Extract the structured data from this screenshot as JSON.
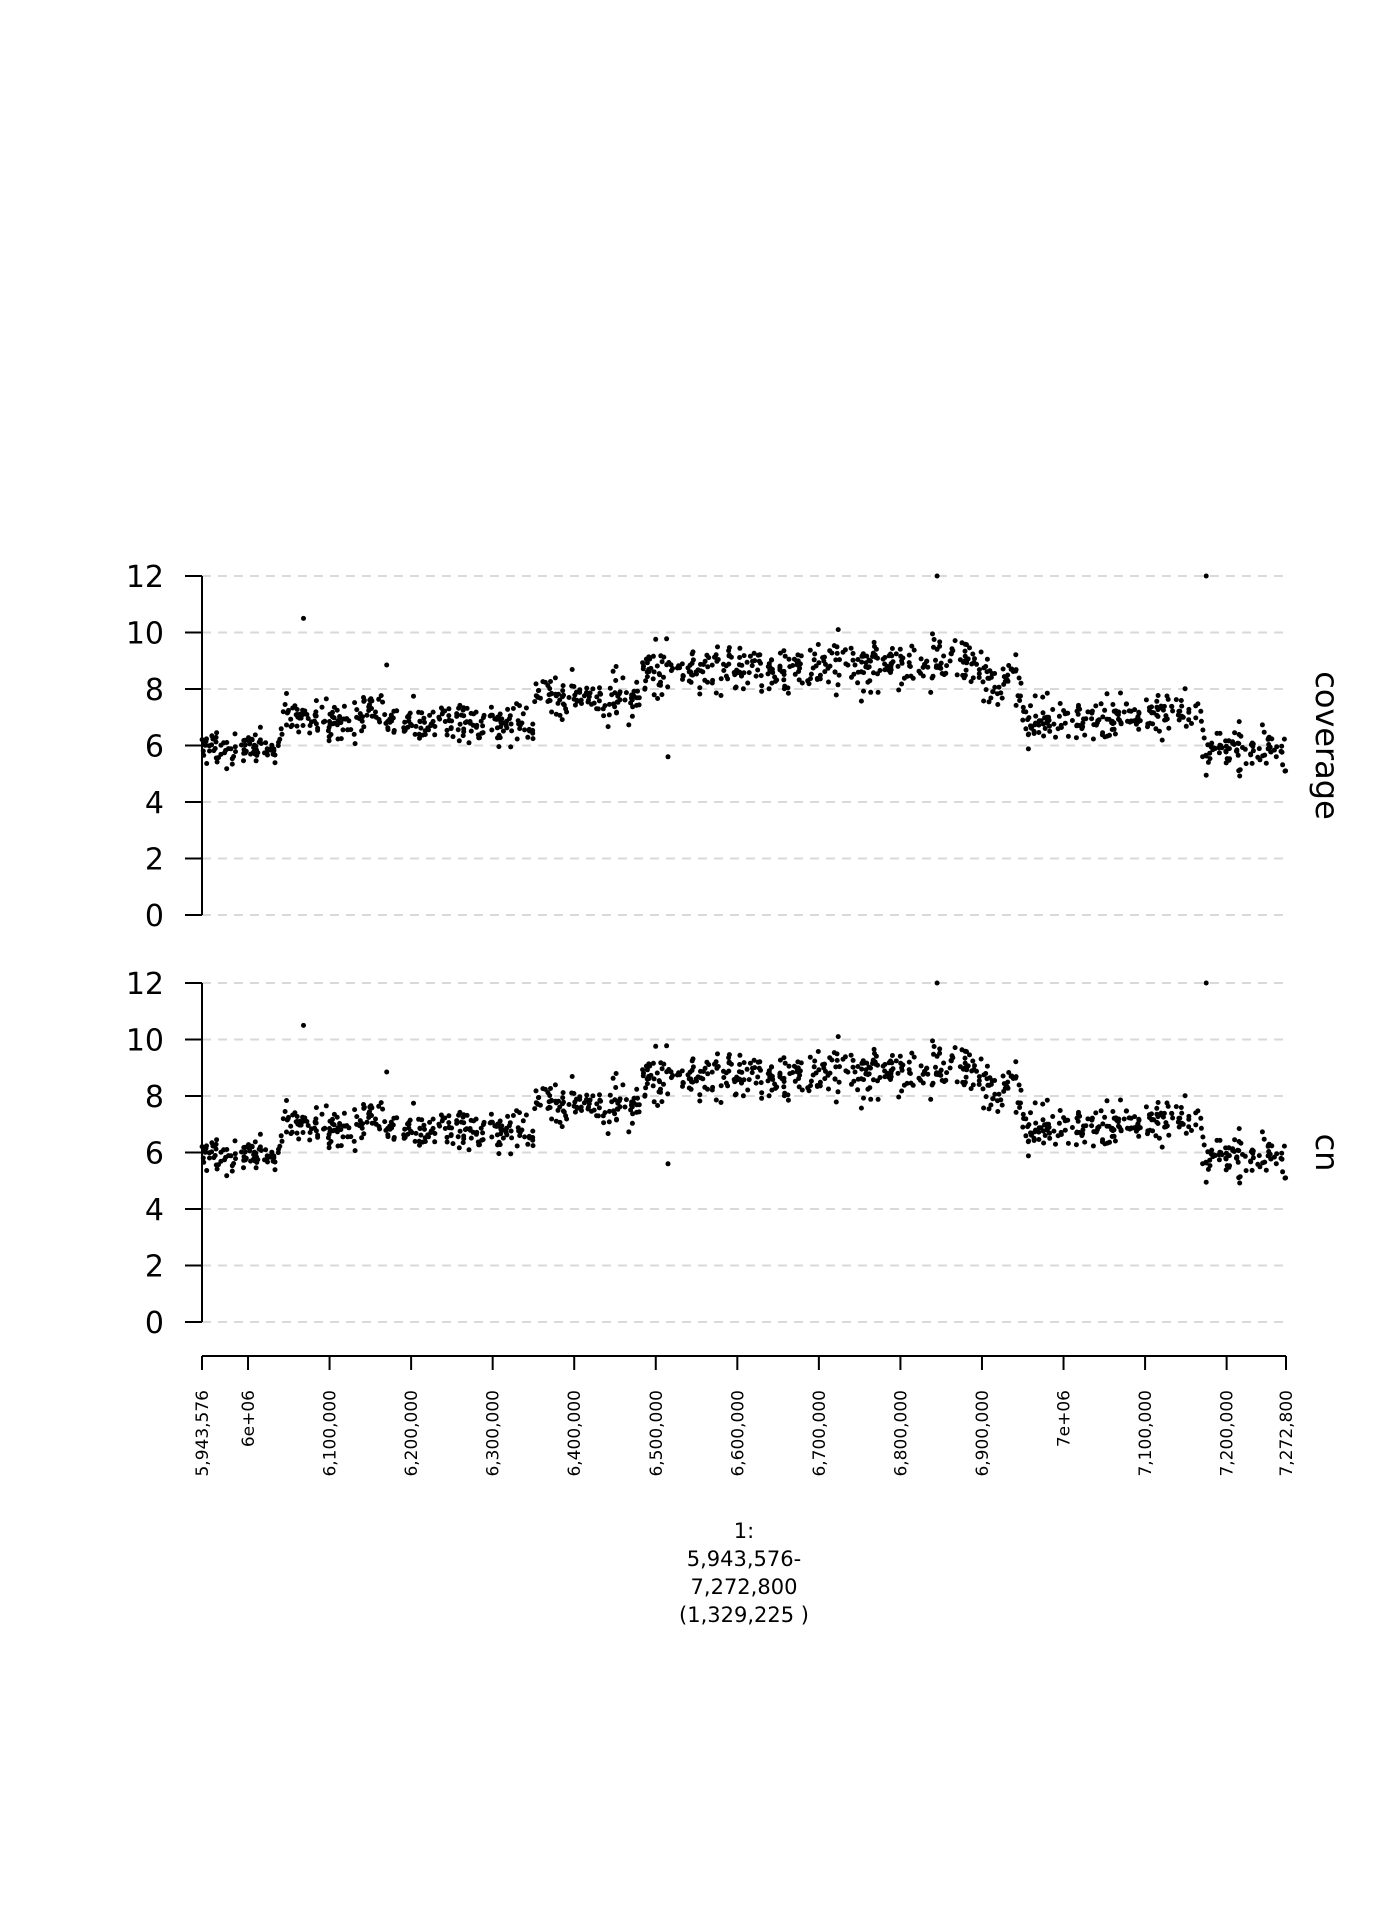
{
  "chart_data": {
    "type": "scatter",
    "xlim": [
      5943576,
      7272800
    ],
    "x_ticks": [
      {
        "value": 5943576,
        "label": "5,943,576"
      },
      {
        "value": 6000000,
        "label": "6e+06"
      },
      {
        "value": 6100000,
        "label": "6,100,000"
      },
      {
        "value": 6200000,
        "label": "6,200,000"
      },
      {
        "value": 6300000,
        "label": "6,300,000"
      },
      {
        "value": 6400000,
        "label": "6,400,000"
      },
      {
        "value": 6500000,
        "label": "6,500,000"
      },
      {
        "value": 6600000,
        "label": "6,600,000"
      },
      {
        "value": 6700000,
        "label": "6,700,000"
      },
      {
        "value": 6800000,
        "label": "6,800,000"
      },
      {
        "value": 6900000,
        "label": "6,900,000"
      },
      {
        "value": 7000000,
        "label": "7e+06"
      },
      {
        "value": 7100000,
        "label": "7,100,000"
      },
      {
        "value": 7200000,
        "label": "7,200,000"
      },
      {
        "value": 7272800,
        "label": "7,272,800"
      }
    ],
    "region_label": [
      "1:",
      "5,943,576-",
      "7,272,800",
      "(1,329,225 )"
    ],
    "panels": [
      {
        "label": "coverage",
        "ylim": [
          0,
          12
        ],
        "y_ticks": [
          "0",
          "2",
          "4",
          "6",
          "8",
          "10",
          "12"
        ],
        "grid": "horizontal dashed",
        "segments": [
          {
            "x": [
              5943576,
              6040000
            ],
            "level": 5.95,
            "spread": 0.55
          },
          {
            "x": [
              6040000,
              6100000
            ],
            "level": 6.95,
            "spread": 0.7
          },
          {
            "x": [
              6100000,
              6140000
            ],
            "level": 6.8,
            "spread": 0.7
          },
          {
            "x": [
              6140000,
              6170000
            ],
            "level": 7.25,
            "spread": 0.8
          },
          {
            "x": [
              6170000,
              6290000
            ],
            "level": 6.8,
            "spread": 0.7
          },
          {
            "x": [
              6290000,
              6350000
            ],
            "level": 6.75,
            "spread": 0.7
          },
          {
            "x": [
              6350000,
              6420000
            ],
            "level": 7.8,
            "spread": 0.7
          },
          {
            "x": [
              6420000,
              6480000
            ],
            "level": 7.7,
            "spread": 0.8
          },
          {
            "x": [
              6480000,
              6530000
            ],
            "level": 8.6,
            "spread": 0.9
          },
          {
            "x": [
              6530000,
              6640000
            ],
            "level": 8.65,
            "spread": 0.9
          },
          {
            "x": [
              6640000,
              6720000
            ],
            "level": 8.8,
            "spread": 0.85
          },
          {
            "x": [
              6720000,
              6840000
            ],
            "level": 8.9,
            "spread": 0.95
          },
          {
            "x": [
              6840000,
              6900000
            ],
            "level": 8.9,
            "spread": 0.8
          },
          {
            "x": [
              6900000,
              6950000
            ],
            "level": 8.2,
            "spread": 0.8
          },
          {
            "x": [
              6950000,
              7060000
            ],
            "level": 6.95,
            "spread": 0.8
          },
          {
            "x": [
              7060000,
              7170000
            ],
            "level": 7.1,
            "spread": 0.65
          },
          {
            "x": [
              7170000,
              7272800
            ],
            "level": 5.9,
            "spread": 0.7
          }
        ],
        "outliers": [
          {
            "x": 6068000,
            "y": 10.5
          },
          {
            "x": 6515000,
            "y": 5.6
          },
          {
            "x": 6845000,
            "y": 12.0
          },
          {
            "x": 7175000,
            "y": 12.0
          },
          {
            "x": 6170000,
            "y": 8.85
          },
          {
            "x": 7175000,
            "y": 4.95
          }
        ]
      },
      {
        "label": "cn",
        "ylim": [
          0,
          12
        ],
        "y_ticks": [
          "0",
          "2",
          "4",
          "6",
          "8",
          "10",
          "12"
        ],
        "grid": "horizontal dashed",
        "segments": [
          {
            "x": [
              5943576,
              6040000
            ],
            "level": 5.95,
            "spread": 0.55
          },
          {
            "x": [
              6040000,
              6100000
            ],
            "level": 6.95,
            "spread": 0.7
          },
          {
            "x": [
              6100000,
              6140000
            ],
            "level": 6.8,
            "spread": 0.7
          },
          {
            "x": [
              6140000,
              6170000
            ],
            "level": 7.25,
            "spread": 0.8
          },
          {
            "x": [
              6170000,
              6290000
            ],
            "level": 6.8,
            "spread": 0.7
          },
          {
            "x": [
              6290000,
              6350000
            ],
            "level": 6.75,
            "spread": 0.7
          },
          {
            "x": [
              6350000,
              6420000
            ],
            "level": 7.8,
            "spread": 0.7
          },
          {
            "x": [
              6420000,
              6480000
            ],
            "level": 7.7,
            "spread": 0.8
          },
          {
            "x": [
              6480000,
              6530000
            ],
            "level": 8.6,
            "spread": 0.9
          },
          {
            "x": [
              6530000,
              6640000
            ],
            "level": 8.65,
            "spread": 0.9
          },
          {
            "x": [
              6640000,
              6720000
            ],
            "level": 8.8,
            "spread": 0.85
          },
          {
            "x": [
              6720000,
              6840000
            ],
            "level": 8.9,
            "spread": 0.95
          },
          {
            "x": [
              6840000,
              6900000
            ],
            "level": 8.9,
            "spread": 0.8
          },
          {
            "x": [
              6900000,
              6950000
            ],
            "level": 8.2,
            "spread": 0.8
          },
          {
            "x": [
              6950000,
              7060000
            ],
            "level": 6.95,
            "spread": 0.8
          },
          {
            "x": [
              7060000,
              7170000
            ],
            "level": 7.1,
            "spread": 0.65
          },
          {
            "x": [
              7170000,
              7272800
            ],
            "level": 5.9,
            "spread": 0.7
          }
        ],
        "outliers": [
          {
            "x": 6068000,
            "y": 10.5
          },
          {
            "x": 6515000,
            "y": 5.6
          },
          {
            "x": 6845000,
            "y": 12.0
          },
          {
            "x": 7175000,
            "y": 12.0
          },
          {
            "x": 6170000,
            "y": 8.85
          },
          {
            "x": 7175000,
            "y": 4.95
          }
        ]
      }
    ],
    "colors": {
      "points": "#000000",
      "grid": "#d9d9d9",
      "axis": "#000000"
    }
  }
}
